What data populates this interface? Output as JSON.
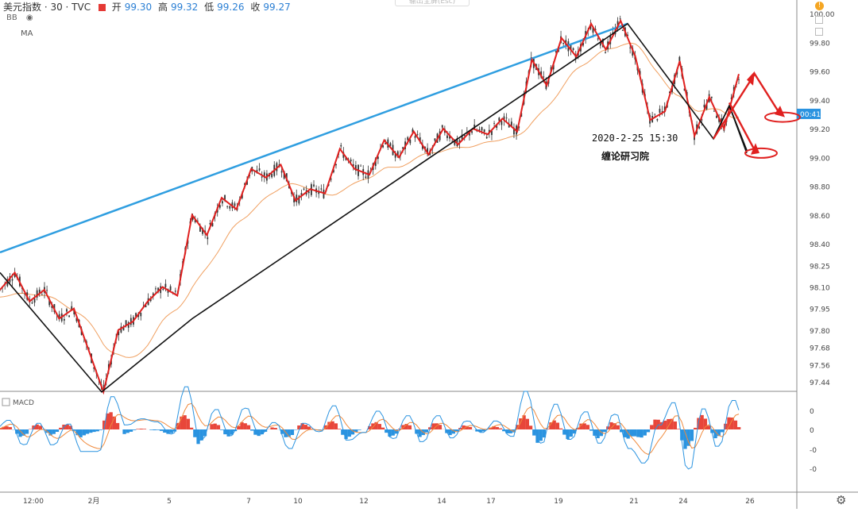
{
  "header": {
    "symbol": "美元指数 · 30 · TVC",
    "open_label": "开",
    "open": "99.30",
    "high_label": "高",
    "high": "99.32",
    "low_label": "低",
    "low": "99.26",
    "close_label": "收",
    "close": "99.27",
    "indicator_1": "BB",
    "indicator_2": "MA",
    "search_placeholder": "输出全屏(Esc)"
  },
  "annotation": {
    "timestamp": "2020-2-25 15:30",
    "author": "缠论研习院"
  },
  "price_badge": "00:41",
  "colors": {
    "up": "#26a69a",
    "down": "#ef5350",
    "candle": "#333333",
    "zigzag_red": "#e0201f",
    "zigzag_black": "#111111",
    "trend_blue": "#2f9ee0",
    "ma": "#f0a061",
    "macd_line": "#2a93e0",
    "signal_line": "#f08a3c",
    "hist_pos": "#e8463a",
    "hist_neg": "#2a93e0"
  },
  "chart_data": {
    "type": "candlestick",
    "y_axis": {
      "ticks": [
        "100.00",
        "99.80",
        "99.60",
        "99.40",
        "99.20",
        "99.00",
        "98.80",
        "98.60",
        "98.40",
        "98.25",
        "98.10",
        "97.95",
        "97.80",
        "97.68",
        "97.56",
        "97.44"
      ],
      "range": [
        97.38,
        100.05
      ]
    },
    "x_axis": {
      "ticks": [
        "12:00",
        "2月",
        "5",
        "7",
        "10",
        "12",
        "14",
        "17",
        "19",
        "21",
        "24",
        "26"
      ]
    },
    "trend_line": [
      {
        "x": "start",
        "y": 98.34
      },
      {
        "x": "21",
        "y": 99.93
      }
    ],
    "black_zigzag": [
      {
        "t": 0,
        "y": 98.2
      },
      {
        "t": 0.11,
        "y": 97.37
      },
      {
        "t": 0.215,
        "y": 97.88
      },
      {
        "t": 0.715,
        "y": 99.93
      },
      {
        "t": 0.815,
        "y": 99.13
      },
      {
        "t": 0.835,
        "y": 99.36
      },
      {
        "t": 0.856,
        "y": 99.03
      }
    ],
    "red_zigzag_points": [
      98.08,
      98.2,
      98.0,
      98.08,
      97.88,
      97.95,
      97.66,
      97.37,
      97.8,
      97.86,
      98.0,
      98.1,
      98.04,
      98.6,
      98.46,
      98.72,
      98.64,
      98.92,
      98.86,
      98.95,
      98.7,
      98.78,
      98.75,
      99.06,
      98.92,
      98.88,
      99.12,
      99.0,
      99.18,
      99.02,
      99.2,
      99.09,
      99.2,
      99.16,
      99.27,
      99.18,
      99.68,
      99.5,
      99.83,
      99.7,
      99.93,
      99.75,
      99.95,
      99.7,
      99.26,
      99.32,
      99.67,
      99.15,
      99.42,
      99.2,
      99.58
    ],
    "projection_targets": [
      99.28,
      99.03
    ],
    "macd": {
      "title": "MACD",
      "ticks": [
        "0",
        "0",
        "-0",
        "-0"
      ],
      "range": [
        -1,
        1
      ]
    }
  }
}
